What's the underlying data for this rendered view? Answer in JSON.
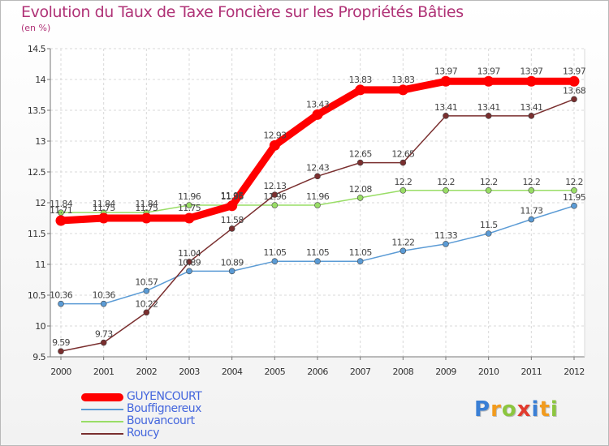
{
  "header": {
    "title": "Evolution du Taux de Taxe Foncière sur les Propriétés Bâties",
    "subtitle": "(en %)"
  },
  "chart_data": {
    "type": "line",
    "title": "Evolution du Taux de Taxe Foncière sur les Propriétés Bâties",
    "ylabel": "(en %)",
    "xlabel": "",
    "ylim": [
      9.5,
      14.5
    ],
    "yticks": [
      "9.5",
      "10",
      "10.5",
      "11",
      "11.5",
      "12",
      "12.5",
      "13",
      "13.5",
      "14",
      "14.5"
    ],
    "x": [
      "2000",
      "2001",
      "2002",
      "2003",
      "2004",
      "2005",
      "2006",
      "2007",
      "2008",
      "2009",
      "2010",
      "2011",
      "2012"
    ],
    "grid": true,
    "legend_position": "bottom-left",
    "series": [
      {
        "name": "GUYENCOURT",
        "color": "#ff0000",
        "values": [
          11.71,
          11.75,
          11.75,
          11.75,
          11.95,
          12.93,
          13.43,
          13.83,
          13.83,
          13.97,
          13.97,
          13.97,
          13.97
        ],
        "labels": [
          "11.71",
          "11.75",
          "11.75",
          "11.75",
          "11.95",
          "12.93",
          "13.43",
          "13.83",
          "13.83",
          "13.97",
          "13.97",
          "13.97",
          "13.97"
        ]
      },
      {
        "name": "Bouffignereux",
        "color": "#5b9bd5",
        "values": [
          10.36,
          10.36,
          10.57,
          10.89,
          10.89,
          11.05,
          11.05,
          11.05,
          11.22,
          11.33,
          11.5,
          11.73,
          11.95
        ],
        "labels": [
          "10.36",
          "10.36",
          "10.57",
          "10.89",
          "10.89",
          "11.05",
          "11.05",
          "11.05",
          "11.22",
          "11.33",
          "11.5",
          "11.73",
          "11.95"
        ]
      },
      {
        "name": "Bouvancourt",
        "color": "#99dd66",
        "values": [
          11.84,
          11.84,
          11.84,
          11.96,
          11.96,
          11.96,
          11.96,
          12.08,
          12.2,
          12.2,
          12.2,
          12.2,
          12.2
        ],
        "labels": [
          "11.84",
          "11.84",
          "11.84",
          "11.96",
          "11.96",
          "11.96",
          "11.96",
          "12.08",
          "12.2",
          "12.2",
          "12.2",
          "12.2",
          "12.2"
        ]
      },
      {
        "name": "Roucy",
        "color": "#7a2f2f",
        "values": [
          9.59,
          9.73,
          10.22,
          11.04,
          11.58,
          12.13,
          12.43,
          12.65,
          12.65,
          13.41,
          13.41,
          13.41,
          13.68
        ],
        "labels": [
          "9.59",
          "9.73",
          "10.22",
          "11.04",
          "11.58",
          "12.13",
          "12.43",
          "12.65",
          "12.65",
          "13.41",
          "13.41",
          "13.41",
          "13.68"
        ]
      }
    ]
  },
  "legend": {
    "items": [
      {
        "label": "GUYENCOURT",
        "color": "#ff0000"
      },
      {
        "label": "Bouffignereux",
        "color": "#5b9bd5"
      },
      {
        "label": "Bouvancourt",
        "color": "#99dd66"
      },
      {
        "label": "Roucy",
        "color": "#7a2f2f"
      }
    ]
  },
  "logo": {
    "letters": [
      "P",
      "r",
      "o",
      "x",
      "i",
      "t",
      "i"
    ],
    "colors": [
      "#3a7fd5",
      "#f29b1d",
      "#8cc63f",
      "#e23b2e",
      "#3a7fd5",
      "#f29b1d",
      "#8cc63f"
    ]
  }
}
